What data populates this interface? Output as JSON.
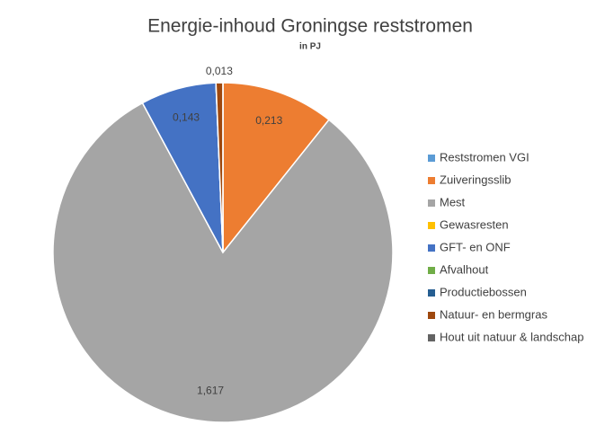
{
  "chart_data": {
    "type": "pie",
    "title": "Energie-inhoud Groningse reststromen",
    "subtitle": "in PJ",
    "categories": [
      "Reststromen VGI",
      "Zuiveringsslib",
      "Mest",
      "Gewasresten",
      "GFT- en ONF",
      "Afvalhout",
      "Productiebossen",
      "Natuur- en bermgras",
      "Hout uit natuur & landschap"
    ],
    "values": [
      0,
      0.213,
      1.617,
      0,
      0.143,
      0,
      0,
      0.013,
      0
    ],
    "value_labels": [
      null,
      "0,213",
      "1,617",
      null,
      "0,143",
      null,
      null,
      "0,013",
      null
    ],
    "colors": [
      "#5b9bd5",
      "#ed7d31",
      "#a5a5a5",
      "#ffc000",
      "#4472c4",
      "#70ad47",
      "#255e91",
      "#9e480e",
      "#636363"
    ],
    "legend": "right"
  }
}
